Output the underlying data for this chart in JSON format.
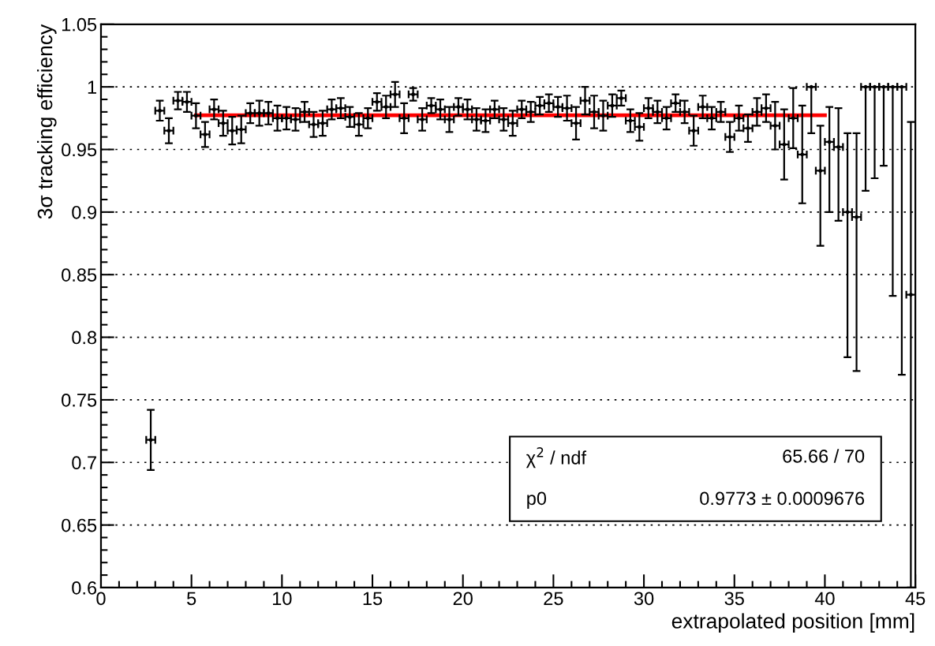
{
  "chart_data": {
    "type": "scatter",
    "xlabel": "extrapolated position [mm]",
    "ylabel": "3σ tracking efficiency",
    "x": [
      2.75,
      3.25,
      3.75,
      4.25,
      4.75,
      5.25,
      5.75,
      6.25,
      6.75,
      7.25,
      7.75,
      8.25,
      8.75,
      9.25,
      9.75,
      10.25,
      10.75,
      11.25,
      11.75,
      12.25,
      12.75,
      13.25,
      13.75,
      14.25,
      14.75,
      15.25,
      15.75,
      16.25,
      16.75,
      17.25,
      17.75,
      18.25,
      18.75,
      19.25,
      19.75,
      20.25,
      20.75,
      21.25,
      21.75,
      22.25,
      22.75,
      23.25,
      23.75,
      24.25,
      24.75,
      25.25,
      25.75,
      26.25,
      26.75,
      27.25,
      27.75,
      28.25,
      28.75,
      29.25,
      29.75,
      30.25,
      30.75,
      31.25,
      31.75,
      32.25,
      32.75,
      33.25,
      33.75,
      34.25,
      34.75,
      35.25,
      35.75,
      36.25,
      36.75,
      37.25,
      37.75,
      38.25,
      38.75,
      39.25,
      39.75,
      40.25,
      40.75,
      41.25,
      41.75,
      42.25,
      42.75,
      43.25,
      43.75,
      44.25,
      44.75
    ],
    "series": [
      {
        "color": "#000000",
        "marker": "circle",
        "values": [
          0.718,
          0.981,
          0.965,
          0.989,
          0.988,
          0.977,
          0.962,
          0.982,
          0.971,
          0.965,
          0.966,
          0.979,
          0.979,
          0.979,
          0.975,
          0.975,
          0.974,
          0.98,
          0.97,
          0.971,
          0.982,
          0.983,
          0.976,
          0.97,
          0.975,
          0.988,
          0.984,
          0.994,
          0.975,
          0.994,
          0.974,
          0.985,
          0.982,
          0.974,
          0.984,
          0.982,
          0.974,
          0.973,
          0.982,
          0.974,
          0.971,
          0.982,
          0.98,
          0.985,
          0.987,
          0.984,
          0.983,
          0.971,
          0.989,
          0.98,
          0.977,
          0.985,
          0.991,
          0.973,
          0.968,
          0.983,
          0.98,
          0.975,
          0.987,
          0.98,
          0.965,
          0.984,
          0.975,
          0.98,
          0.96,
          0.975,
          0.967,
          0.98,
          0.983,
          0.969,
          0.954,
          0.975,
          0.946,
          1.0,
          0.933,
          0.956,
          0.952,
          0.9,
          0.896,
          1.0,
          1.0,
          1.0,
          1.0,
          1.0,
          0.834
        ],
        "errors": [
          0.024,
          0.008,
          0.01,
          0.007,
          0.008,
          0.01,
          0.01,
          0.008,
          0.01,
          0.011,
          0.011,
          0.008,
          0.01,
          0.009,
          0.01,
          0.009,
          0.009,
          0.008,
          0.01,
          0.01,
          0.008,
          0.008,
          0.008,
          0.009,
          0.008,
          0.007,
          0.009,
          0.01,
          0.012,
          0.005,
          0.009,
          0.006,
          0.008,
          0.01,
          0.007,
          0.008,
          0.009,
          0.009,
          0.007,
          0.009,
          0.01,
          0.007,
          0.008,
          0.007,
          0.007,
          0.008,
          0.01,
          0.013,
          0.011,
          0.013,
          0.012,
          0.009,
          0.006,
          0.009,
          0.011,
          0.008,
          0.009,
          0.009,
          0.007,
          0.009,
          0.012,
          0.009,
          0.009,
          0.008,
          0.012,
          0.01,
          0.011,
          0.011,
          0.011,
          0.019,
          0.028,
          0.024,
          0.039,
          [
            0.963,
            1.0
          ],
          [
            0.873,
            0.969
          ],
          [
            0.9,
            0.984
          ],
          [
            0.893,
            0.983
          ],
          [
            0.784,
            0.963
          ],
          [
            0.773,
            0.963
          ],
          [
            0.917,
            1.0
          ],
          [
            0.927,
            1.0
          ],
          [
            0.937,
            1.0
          ],
          [
            0.833,
            1.0
          ],
          [
            0.77,
            1.0
          ],
          [
            0.6,
            0.972
          ]
        ],
        "xerrors": [
          0.25,
          0.25,
          0.25,
          0.25,
          0.25,
          0.25,
          0.25,
          0.25,
          0.25,
          0.25,
          0.25,
          0.25,
          0.25,
          0.25,
          0.25,
          0.25,
          0.25,
          0.25,
          0.25,
          0.25,
          0.25,
          0.25,
          0.25,
          0.25,
          0.25,
          0.25,
          0.25,
          0.25,
          0.25,
          0.25,
          0.25,
          0.25,
          0.25,
          0.25,
          0.25,
          0.25,
          0.25,
          0.25,
          0.25,
          0.25,
          0.25,
          0.25,
          0.25,
          0.25,
          0.25,
          0.25,
          0.25,
          0.25,
          0.25,
          0.25,
          0.25,
          0.25,
          0.25,
          0.25,
          0.25,
          0.25,
          0.25,
          0.25,
          0.25,
          0.25,
          0.25,
          0.25,
          0.25,
          0.25,
          0.25,
          0.25,
          0.25,
          0.25,
          0.25,
          0.25,
          0.25,
          0.25,
          0.25,
          0.25,
          0.25,
          0.25,
          0.25,
          0.25,
          0.25,
          0.25,
          0.25,
          0.25,
          0.25,
          0.25,
          0.25
        ]
      },
      {
        "type": "line",
        "color": "#ff0000",
        "x": [
          5.25,
          40
        ],
        "values": [
          0.9773,
          0.9773
        ]
      }
    ],
    "marker": "none",
    "xlim": [
      0,
      45
    ],
    "xticks": [
      0,
      5,
      10,
      15,
      20,
      25,
      30,
      35,
      40,
      45
    ],
    "ylim": [
      0.6,
      1.05
    ],
    "yticks": [
      0.6,
      0.65,
      0.7,
      0.75,
      0.8,
      0.85,
      0.9,
      0.95,
      1,
      1.05
    ],
    "grid": "y",
    "annotations": [
      "χ$^{2}$ / ndf",
      "65.66 / 70",
      "p0",
      "0.9773 ± 0.0009676"
    ]
  }
}
